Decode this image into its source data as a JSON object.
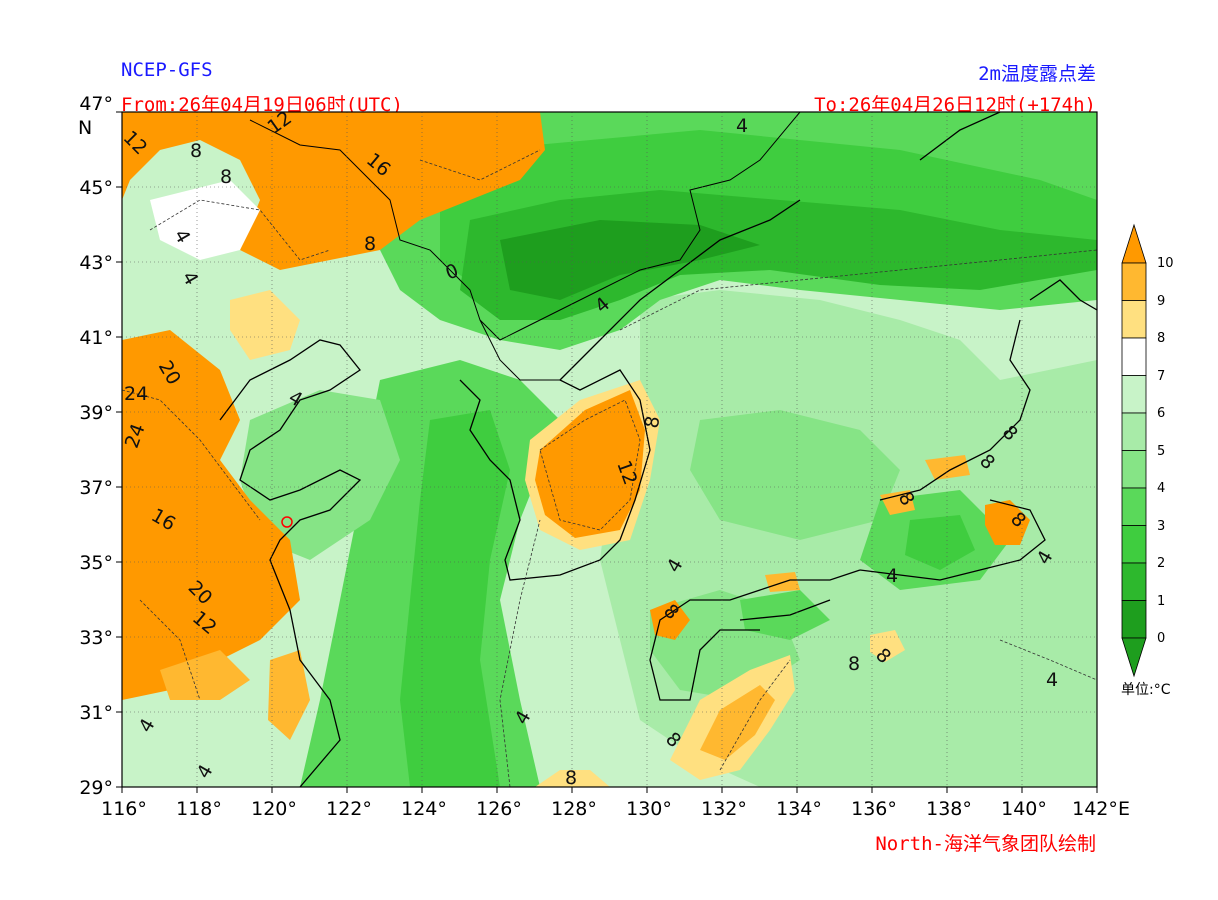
{
  "header": {
    "model": "NCEP-GFS",
    "variable": "2m温度露点差",
    "from": "From:26年04月19日06时(UTC)",
    "to": "To:26年04月26日12时(+174h)",
    "credit": "North-海洋气象团队绘制"
  },
  "axes": {
    "lon_ticks": [
      "116°",
      "118°",
      "120°",
      "122°",
      "124°",
      "126°",
      "128°",
      "130°",
      "132°",
      "134°",
      "136°",
      "138°",
      "140°",
      "142°"
    ],
    "lon_unit": "E",
    "lat_ticks": [
      "29°",
      "31°",
      "33°",
      "35°",
      "37°",
      "39°",
      "41°",
      "43°",
      "45°",
      "47°"
    ],
    "lat_unit": "N"
  },
  "colorbar": {
    "levels": [
      "0",
      "1",
      "2",
      "3",
      "4",
      "5",
      "6",
      "7",
      "8",
      "9",
      "10"
    ],
    "unit_label": "单位:°C",
    "colors": [
      "#1e9e1e",
      "#2db82d",
      "#3fcd3f",
      "#5ad95a",
      "#86e486",
      "#a8eba8",
      "#c8f3c8",
      "#ffffff",
      "#ffe080",
      "#ffb830",
      "#ff9900"
    ]
  },
  "contour_labels": [
    "12",
    "8",
    "8",
    "12",
    "16",
    "8",
    "4",
    "4",
    "0",
    "4",
    "4",
    "20",
    "24",
    "24",
    "4",
    "16",
    "20",
    "12",
    "8",
    "12",
    "8",
    "4",
    "4",
    "4",
    "8",
    "8",
    "8",
    "4",
    "8",
    "8",
    "4",
    "4",
    "4",
    "8",
    "8",
    "8"
  ]
}
